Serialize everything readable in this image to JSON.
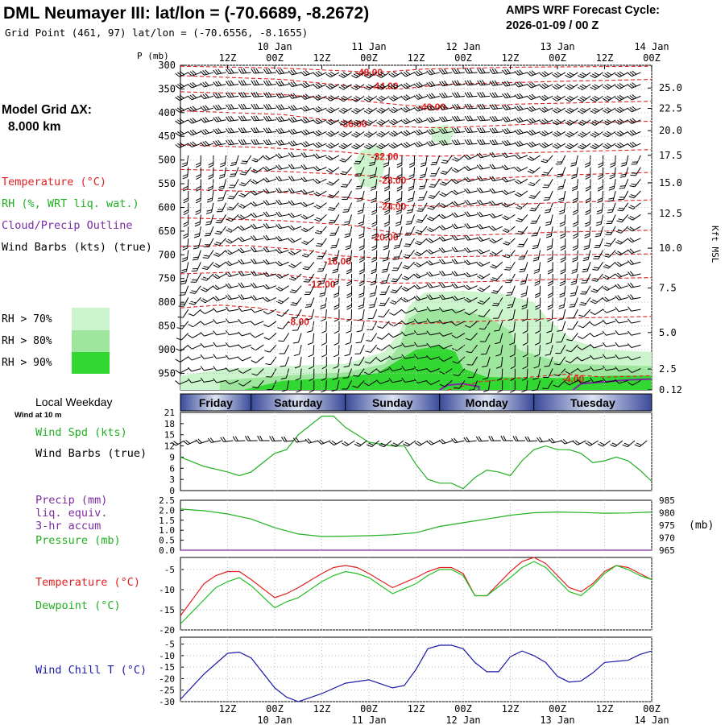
{
  "header": {
    "title": "DML Neumayer III:  lat/lon = (-70.6689, -8.2672)",
    "grid_point": "Grid Point (461, 97) lat/lon = (-70.6556, -8.1655)",
    "cycle_title": "AMPS WRF Forecast Cycle:",
    "cycle_value": "2026-01-09 / 00  Z"
  },
  "left_panel": {
    "grid_label": "Model Grid ΔX:",
    "grid_value": "8.000 km",
    "legend_temperature": "Temperature (°C)",
    "legend_rh": "RH (%, WRT liq. wat.)",
    "legend_cloud": "Cloud/Precip Outline",
    "legend_wind": "Wind Barbs (kts) (true)",
    "rh70": "RH > 70%",
    "rh80": "RH > 80%",
    "rh90": "RH > 90%",
    "local_weekday": "Local Weekday",
    "wind_10m": "Wind at 10 m",
    "wind_spd": "Wind Spd (kts)",
    "wind_barbs": "Wind Barbs (true)",
    "precip1": "Precip (mm)",
    "precip2": "liq. equiv.",
    "precip3": "3-hr accum",
    "pressure": "Pressure (mb)",
    "temperature": "Temperature (°C)",
    "dewpoint": "Dewpoint (°C)",
    "windchill": "Wind Chill T (°C)"
  },
  "colors": {
    "temperature": "#e02020",
    "dewpoint": "#20c020",
    "windchill": "#1a1aa8",
    "pressure": "#20b020",
    "wind": "#20b020",
    "rh70": "#cdf5cd",
    "rh80": "#9ee69e",
    "rh90": "#32d732",
    "cloud": "#7a2ca0"
  },
  "chart_data": [
    {
      "type": "line",
      "name": "time-axis",
      "top_ticks": [
        "12Z",
        "00Z",
        "12Z",
        "00Z",
        "12Z",
        "00Z",
        "12Z",
        "00Z",
        "12Z",
        "00Z"
      ],
      "top_dates": [
        "10 Jan",
        "11 Jan",
        "12 Jan",
        "13 Jan",
        "14 Jan"
      ],
      "bottom_ticks": [
        "12Z",
        "00Z",
        "12Z",
        "00Z",
        "12Z",
        "00Z",
        "12Z",
        "00Z",
        "12Z",
        "00Z"
      ],
      "bottom_dates": [
        "10 Jan",
        "11 Jan",
        "12 Jan",
        "13 Jan",
        "14 Jan"
      ],
      "xlim_hours": [
        -6,
        114
      ]
    },
    {
      "type": "heatmap",
      "name": "sounding-cross-section",
      "pressure_label": "P (mb)",
      "height_label": "Kft MSL",
      "pressure_ticks": [
        "300",
        "350",
        "400",
        "450",
        "500",
        "550",
        "600",
        "650",
        "700",
        "750",
        "800",
        "850",
        "900",
        "950"
      ],
      "height_ticks": [
        "25.0",
        "22.5",
        "20.0",
        "17.5",
        "15.0",
        "12.5",
        "10.0",
        "7.5",
        "5.0",
        "2.5",
        "0.12"
      ],
      "ylim_mb": [
        300,
        985
      ],
      "isotherms": [
        {
          "label": "-48.00",
          "points": [
            [
              -6,
              302
            ],
            [
              20,
              306
            ],
            [
              36,
              312
            ],
            [
              44,
              315
            ],
            [
              56,
              308
            ],
            [
              80,
              304
            ],
            [
              114,
              302
            ]
          ]
        },
        {
          "label": "-44.00",
          "points": [
            [
              -6,
              322
            ],
            [
              20,
              330
            ],
            [
              40,
              346
            ],
            [
              50,
              350
            ],
            [
              62,
              340
            ],
            [
              90,
              334
            ],
            [
              114,
              330
            ]
          ]
        },
        {
          "label": "-40.00",
          "points": [
            [
              -6,
              356
            ],
            [
              20,
              362
            ],
            [
              36,
              372
            ],
            [
              52,
              385
            ],
            [
              62,
              390
            ],
            [
              80,
              382
            ],
            [
              114,
              376
            ]
          ]
        },
        {
          "label": "-36.00",
          "points": [
            [
              -6,
              396
            ],
            [
              20,
              404
            ],
            [
              34,
              418
            ],
            [
              44,
              428
            ],
            [
              60,
              432
            ],
            [
              84,
              424
            ],
            [
              114,
              418
            ]
          ]
        },
        {
          "label": "-32.00",
          "points": [
            [
              -6,
              468
            ],
            [
              16,
              474
            ],
            [
              34,
              482
            ],
            [
              44,
              490
            ],
            [
              60,
              492
            ],
            [
              84,
              484
            ],
            [
              114,
              478
            ]
          ]
        },
        {
          "label": "-28.00",
          "points": [
            [
              -6,
              520
            ],
            [
              20,
              524
            ],
            [
              40,
              532
            ],
            [
              50,
              540
            ],
            [
              64,
              542
            ],
            [
              90,
              532
            ],
            [
              114,
              526
            ]
          ]
        },
        {
          "label": "-24.00",
          "points": [
            [
              -6,
              562
            ],
            [
              20,
              568
            ],
            [
              40,
              582
            ],
            [
              50,
              596
            ],
            [
              64,
              598
            ],
            [
              90,
              590
            ],
            [
              114,
              584
            ]
          ]
        },
        {
          "label": "-20.00",
          "points": [
            [
              -6,
              622
            ],
            [
              20,
              628
            ],
            [
              38,
              638
            ],
            [
              50,
              656
            ],
            [
              64,
              660
            ],
            [
              90,
              652
            ],
            [
              114,
              648
            ]
          ]
        },
        {
          "label": "-16.00",
          "points": [
            [
              -6,
              682
            ],
            [
              10,
              680
            ],
            [
              26,
              690
            ],
            [
              34,
              702
            ],
            [
              48,
              708
            ],
            [
              64,
              704
            ],
            [
              90,
              700
            ],
            [
              114,
              698
            ]
          ]
        },
        {
          "label": "-12.00",
          "points": [
            [
              -6,
              740
            ],
            [
              10,
              736
            ],
            [
              22,
              744
            ],
            [
              30,
              750
            ],
            [
              48,
              760
            ],
            [
              64,
              758
            ],
            [
              90,
              752
            ],
            [
              114,
              748
            ]
          ]
        },
        {
          "label": "-8.00",
          "points": [
            [
              -6,
              812
            ],
            [
              4,
              806
            ],
            [
              14,
              812
            ],
            [
              22,
              826
            ],
            [
              36,
              836
            ],
            [
              52,
              846
            ],
            [
              64,
              842
            ],
            [
              90,
              834
            ],
            [
              114,
              830
            ]
          ]
        },
        {
          "label": "-4.00",
          "points": [
            [
              62,
              986
            ],
            [
              70,
              968
            ],
            [
              80,
              960
            ],
            [
              92,
              952
            ],
            [
              102,
              958
            ],
            [
              114,
              955
            ]
          ]
        }
      ],
      "isotherm_labels": [
        {
          "label": "-48.00",
          "x": 42,
          "p": 315
        },
        {
          "label": "-44.00",
          "x": 46,
          "p": 344
        },
        {
          "label": "-40.00",
          "x": 58,
          "p": 388
        },
        {
          "label": "-36.00",
          "x": 38,
          "p": 424
        },
        {
          "label": "-32.00",
          "x": 46,
          "p": 493
        },
        {
          "label": "-28.00",
          "x": 48,
          "p": 543
        },
        {
          "label": "-24.00",
          "x": 48,
          "p": 598
        },
        {
          "label": "-20.00",
          "x": 46,
          "p": 663
        },
        {
          "label": "-16.00",
          "x": 34,
          "p": 714
        },
        {
          "label": "-12.00",
          "x": 30,
          "p": 762
        },
        {
          "label": "-8.00",
          "x": 24,
          "p": 841
        },
        {
          "label": "-4.00",
          "x": 94,
          "p": 962
        }
      ]
    },
    {
      "type": "line",
      "name": "wind-speed",
      "day_labels": [
        "Friday",
        "Saturday",
        "Sunday",
        "Monday",
        "Tuesday"
      ],
      "x": [
        -6,
        0,
        6,
        9,
        12,
        18,
        21,
        24,
        30,
        33,
        36,
        39,
        42,
        48,
        51,
        54,
        57,
        60,
        63,
        66,
        69,
        72,
        75,
        78,
        81,
        84,
        87,
        90,
        93,
        96,
        99,
        102,
        105,
        108,
        111,
        114
      ],
      "values": [
        9,
        6.5,
        5,
        4,
        5,
        10,
        11,
        15,
        20,
        20,
        17,
        15,
        13,
        12,
        12,
        7,
        3,
        2,
        2,
        0.5,
        3.5,
        5.5,
        5,
        4,
        8,
        11,
        12,
        11,
        11,
        10,
        7.5,
        8,
        9,
        8,
        5.5,
        2.5
      ],
      "ylim": [
        0,
        21
      ],
      "yticks": [
        "0",
        "3",
        "6",
        "9",
        "12",
        "15",
        "18",
        "21"
      ]
    },
    {
      "type": "line",
      "name": "pressure-precip",
      "x": [
        -6,
        0,
        6,
        12,
        18,
        24,
        30,
        36,
        42,
        48,
        54,
        60,
        66,
        72,
        78,
        84,
        90,
        96,
        102,
        108,
        114
      ],
      "pressure": [
        981.5,
        980.8,
        979.5,
        977.5,
        974,
        971.5,
        970.5,
        970.6,
        970.8,
        971.2,
        972,
        974.5,
        976,
        977.5,
        979,
        980,
        980.3,
        980.1,
        979.8,
        979.9,
        980.3
      ],
      "precip": [
        0,
        0,
        0,
        0,
        0,
        0,
        0,
        0,
        0,
        0,
        0,
        0,
        0,
        0,
        0,
        0,
        0,
        0,
        0,
        0,
        0
      ],
      "ylim_left": [
        0,
        2.5
      ],
      "ylim_right": [
        965,
        985
      ],
      "yticks_left": [
        "0.0",
        "0.5",
        "1.0",
        "1.5",
        "2.0",
        "2.5"
      ],
      "yticks_right": [
        "965",
        "970",
        "975",
        "980",
        "985"
      ],
      "right_label": "(mb)"
    },
    {
      "type": "line",
      "name": "temperature-dewpoint",
      "x": [
        -6,
        0,
        3,
        6,
        9,
        12,
        18,
        21,
        24,
        30,
        33,
        36,
        39,
        42,
        48,
        54,
        57,
        60,
        63,
        66,
        69,
        72,
        78,
        81,
        84,
        87,
        90,
        93,
        96,
        99,
        102,
        105,
        108,
        111,
        114
      ],
      "temperature": [
        -16.5,
        -8.5,
        -6.5,
        -5.5,
        -5.5,
        -7.5,
        -12,
        -11,
        -9.5,
        -6,
        -4.5,
        -4,
        -4.5,
        -6,
        -9.5,
        -7,
        -5.5,
        -4.5,
        -4.5,
        -6,
        -11.5,
        -11.5,
        -5.5,
        -3,
        -2,
        -3.5,
        -6.5,
        -9.5,
        -10.5,
        -8.5,
        -5.5,
        -4,
        -4.5,
        -6,
        -7.5
      ],
      "dewpoint": [
        -18.5,
        -12.5,
        -9.5,
        -8,
        -7,
        -9,
        -14.5,
        -13,
        -12,
        -8,
        -6.5,
        -5.5,
        -6,
        -7,
        -11,
        -8.5,
        -6.5,
        -5,
        -5,
        -6.5,
        -11.5,
        -11.5,
        -7,
        -4.5,
        -3,
        -4.5,
        -7.5,
        -10.5,
        -11.5,
        -9,
        -6,
        -4,
        -5,
        -6.5,
        -7.5
      ],
      "ylim": [
        -20,
        -2
      ],
      "yticks": [
        "-20",
        "-15",
        "-10",
        "-5"
      ]
    },
    {
      "type": "line",
      "name": "wind-chill",
      "x": [
        -6,
        0,
        6,
        9,
        12,
        18,
        21,
        24,
        30,
        36,
        42,
        48,
        51,
        54,
        57,
        60,
        63,
        66,
        69,
        72,
        75,
        78,
        81,
        84,
        87,
        90,
        93,
        96,
        99,
        102,
        105,
        108,
        111,
        114
      ],
      "values": [
        -29,
        -18,
        -9,
        -8.5,
        -11,
        -24,
        -28,
        -30,
        -26.5,
        -22,
        -20.5,
        -24,
        -23,
        -16,
        -7,
        -5.5,
        -5.5,
        -7,
        -13,
        -17,
        -17,
        -10.5,
        -8,
        -10,
        -13,
        -19,
        -21.5,
        -21,
        -17.5,
        -13,
        -12.5,
        -12,
        -9.5,
        -8
      ],
      "ylim": [
        -30,
        -2
      ],
      "yticks": [
        "-30",
        "-25",
        "-20",
        "-15",
        "-10",
        "-5"
      ]
    }
  ]
}
